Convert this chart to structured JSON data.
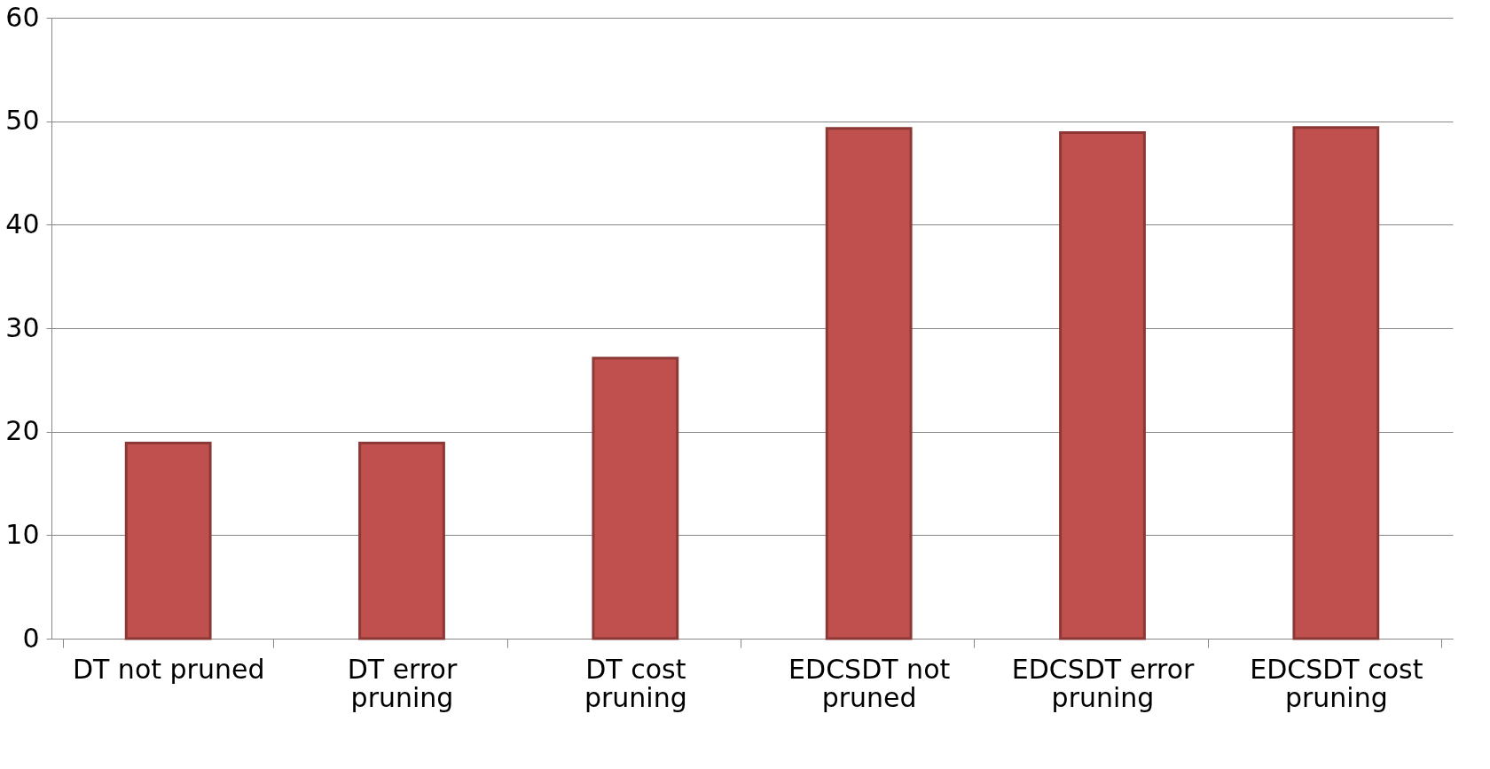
{
  "chart_data": {
    "type": "bar",
    "categories": [
      "DT not pruned",
      "DT error pruning",
      "DT cost pruning",
      "EDCSDT not pruned",
      "EDCSDT error pruning",
      "EDCSDT cost pruning"
    ],
    "values": [
      18.9,
      18.9,
      27.1,
      49.3,
      48.9,
      49.4
    ],
    "color": "#c0504d",
    "ylim": [
      0,
      60
    ],
    "yticks": [
      0,
      10,
      20,
      30,
      40,
      50,
      60
    ],
    "grid": "y"
  }
}
